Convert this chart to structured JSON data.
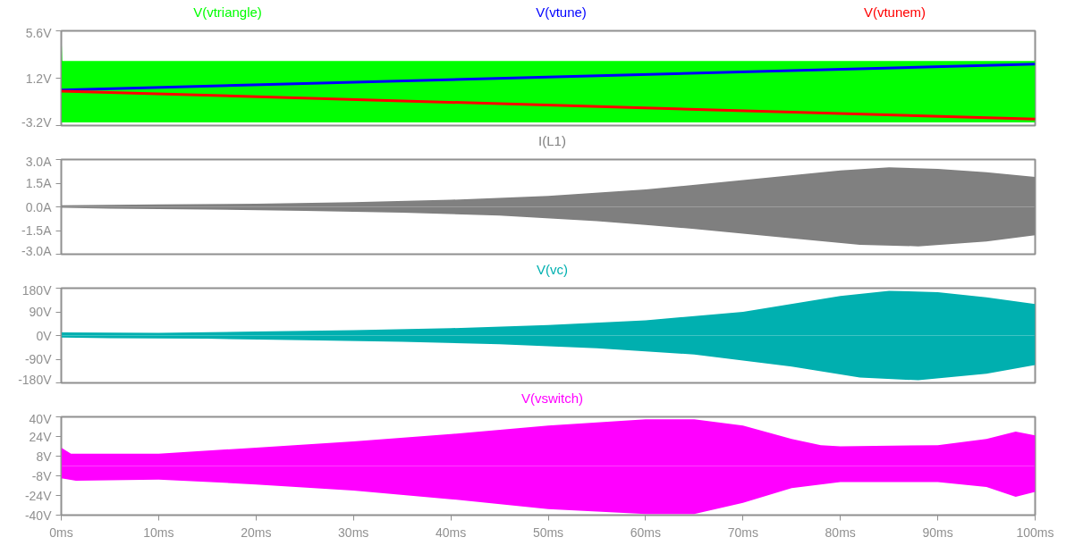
{
  "chart_data": [
    {
      "type": "area",
      "xlim": [
        0,
        100
      ],
      "ylim": [
        -3.2,
        5.6
      ],
      "yticks": [
        {
          "value": 5.6,
          "label": "5.6V"
        },
        {
          "value": 1.2,
          "label": "1.2V"
        },
        {
          "value": -3.2,
          "label": "-3.2V"
        }
      ],
      "tick_labels": "y",
      "grid": false,
      "series": [
        {
          "name": "V(vtriangle)",
          "color": "#00ff00",
          "x": [
            0,
            0.1,
            100
          ],
          "values": [
            5.6,
            2.8,
            2.8
          ]
        },
        {
          "color": "#00ff00",
          "x": [
            0,
            100
          ],
          "values": [
            -2.9,
            -2.9
          ]
        },
        {
          "name": "V(vtune)",
          "color": "#0000ff",
          "type": "line",
          "x": [
            0,
            100
          ],
          "values": [
            0.1,
            2.5
          ]
        },
        {
          "name": "V(vtunem)",
          "color": "#ff0000",
          "type": "line",
          "x": [
            0,
            100
          ],
          "values": [
            0.0,
            -2.6
          ]
        }
      ]
    },
    {
      "type": "area",
      "xlim": [
        0,
        100
      ],
      "ylim": [
        -3.0,
        3.0
      ],
      "yticks": [
        {
          "value": 3.0,
          "label": "3.0A"
        },
        {
          "value": 1.5,
          "label": "1.5A"
        },
        {
          "value": 0.0,
          "label": "0.0A"
        },
        {
          "value": -1.5,
          "label": "-1.5A"
        },
        {
          "value": -3.0,
          "label": "-3.0A"
        }
      ],
      "tick_labels": "y",
      "grid": false,
      "series": [
        {
          "name": "I(L1)",
          "color": "#808080",
          "x": [
            0,
            10,
            20,
            30,
            40,
            50,
            60,
            70,
            80,
            85,
            90,
            95,
            100
          ],
          "values": [
            0.1,
            0.15,
            0.2,
            0.3,
            0.45,
            0.7,
            1.1,
            1.7,
            2.3,
            2.5,
            2.4,
            2.2,
            1.9
          ]
        },
        {
          "color": "#7f7f7f",
          "x": [
            0,
            5,
            15,
            25,
            35,
            45,
            55,
            60,
            65,
            75,
            82,
            88,
            95,
            100
          ],
          "values": [
            -0.05,
            -0.12,
            -0.17,
            -0.25,
            -0.37,
            -0.55,
            -0.9,
            -1.15,
            -1.4,
            -2.0,
            -2.4,
            -2.5,
            -2.2,
            -1.8
          ]
        }
      ]
    },
    {
      "type": "area",
      "xlim": [
        0,
        100
      ],
      "ylim": [
        -180,
        180
      ],
      "yticks": [
        {
          "value": 180,
          "label": "180V"
        },
        {
          "value": 90,
          "label": "90V"
        },
        {
          "value": 0,
          "label": "0V"
        },
        {
          "value": -90,
          "label": "-90V"
        },
        {
          "value": -180,
          "label": "-180V"
        }
      ],
      "tick_labels": "y",
      "grid": false,
      "series": [
        {
          "name": "V(vc)",
          "color": "#00b0b0",
          "x": [
            0,
            10,
            20,
            30,
            40,
            50,
            60,
            70,
            80,
            85,
            90,
            95,
            100
          ],
          "values": [
            12,
            10,
            15,
            20,
            28,
            40,
            58,
            90,
            150,
            170,
            165,
            145,
            120
          ]
        },
        {
          "color": "#00afaf",
          "x": [
            0,
            5,
            15,
            25,
            35,
            45,
            55,
            60,
            65,
            75,
            82,
            88,
            95,
            100
          ],
          "values": [
            -8,
            -10,
            -12,
            -18,
            -24,
            -33,
            -48,
            -60,
            -72,
            -118,
            -160,
            -170,
            -145,
            -112
          ]
        }
      ]
    },
    {
      "type": "area",
      "xlim": [
        0,
        100
      ],
      "ylim": [
        -40,
        40
      ],
      "xticks": [
        {
          "value": 0,
          "label": "0ms"
        },
        {
          "value": 10,
          "label": "10ms"
        },
        {
          "value": 20,
          "label": "20ms"
        },
        {
          "value": 30,
          "label": "30ms"
        },
        {
          "value": 40,
          "label": "40ms"
        },
        {
          "value": 50,
          "label": "50ms"
        },
        {
          "value": 60,
          "label": "60ms"
        },
        {
          "value": 70,
          "label": "70ms"
        },
        {
          "value": 80,
          "label": "80ms"
        },
        {
          "value": 90,
          "label": "90ms"
        },
        {
          "value": 100,
          "label": "100ms"
        }
      ],
      "yticks": [
        {
          "value": 40,
          "label": "40V"
        },
        {
          "value": 24,
          "label": "24V"
        },
        {
          "value": 8,
          "label": "8V"
        },
        {
          "value": -8,
          "label": "-8V"
        },
        {
          "value": -24,
          "label": "-24V"
        },
        {
          "value": -40,
          "label": "-40V"
        }
      ],
      "grid": false,
      "series": [
        {
          "name": "V(vswitch)",
          "color": "#ff00ff",
          "x": [
            0,
            1,
            10,
            20,
            30,
            40,
            50,
            60,
            65,
            70,
            75,
            78,
            80,
            90,
            95,
            98,
            100
          ],
          "values": [
            15,
            10,
            10,
            15,
            20,
            26,
            33,
            38,
            38,
            33,
            22,
            17,
            16,
            17,
            22,
            28,
            25
          ]
        },
        {
          "color": "#ff00ff",
          "x": [
            0,
            1.5,
            10,
            20,
            30,
            40,
            50,
            60,
            65,
            70,
            75,
            80,
            90,
            95,
            98,
            100
          ],
          "values": [
            -10,
            -12,
            -11,
            -15,
            -20,
            -27,
            -35,
            -39,
            -39,
            -30,
            -18,
            -13,
            -13,
            -17,
            -25,
            -21
          ]
        }
      ]
    }
  ]
}
